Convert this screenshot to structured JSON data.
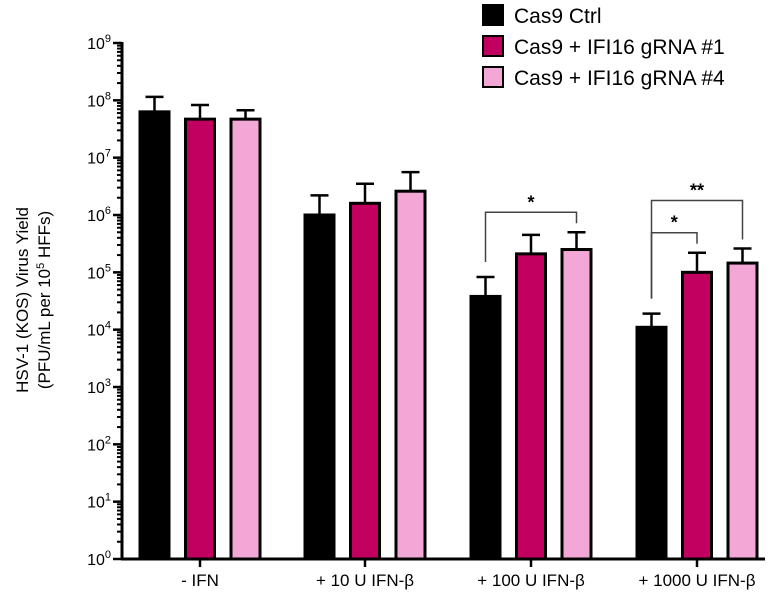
{
  "chart_data": {
    "type": "bar",
    "title": "",
    "xlabel": "",
    "ylabel": [
      "HSV-1 (KOS) Virus Yield",
      "(PFU/mL per 10",
      "5",
      " HFFs)"
    ],
    "yscale": "log",
    "ylim": [
      1,
      1000000000
    ],
    "ytick_exponents": [
      0,
      1,
      2,
      3,
      4,
      5,
      6,
      7,
      8,
      9
    ],
    "ytick_base": "10",
    "grid": false,
    "legend_position": "top-right",
    "categories": [
      "- IFN",
      "+ 10 U IFN-β",
      "+ 100 U IFN-β",
      "+ 1000 U IFN-β"
    ],
    "series": [
      {
        "name": "Cas9 Ctrl",
        "color": "#000000",
        "values": [
          63000000,
          1000000,
          38000,
          11000
        ],
        "error_upper": [
          115000000,
          2200000,
          83000,
          19000
        ]
      },
      {
        "name": "Cas9 + IFI16 gRNA #1",
        "color": "#c2005f",
        "values": [
          47000000,
          1600000,
          210000,
          100000
        ],
        "error_upper": [
          83000000,
          3500000,
          450000,
          220000
        ]
      },
      {
        "name": "Cas9 + IFI16 gRNA #4",
        "color": "#f3a7d6",
        "values": [
          47000000,
          2600000,
          250000,
          145000
        ],
        "error_upper": [
          67000000,
          5600000,
          500000,
          260000
        ]
      }
    ],
    "significance": [
      {
        "category": 2,
        "from_series": 0,
        "to_series": 2,
        "label": "*"
      },
      {
        "category": 3,
        "from_series": 0,
        "to_series": 1,
        "label": "*"
      },
      {
        "category": 3,
        "from_series": 0,
        "to_series": 2,
        "label": "**"
      }
    ]
  }
}
